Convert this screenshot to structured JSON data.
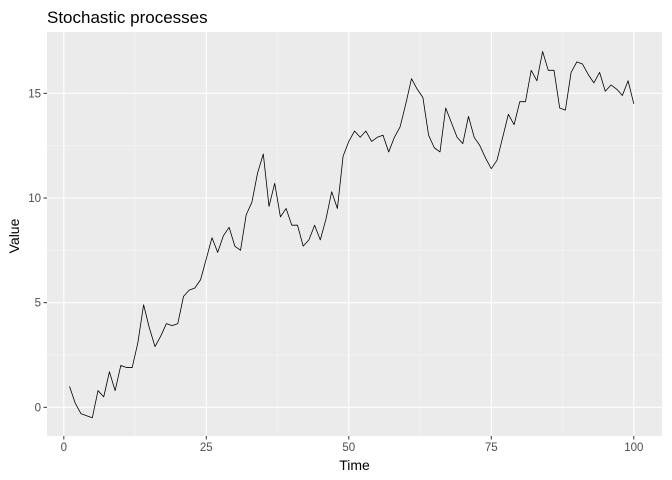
{
  "chart_data": {
    "type": "line",
    "title": "Stochastic processes",
    "xlabel": "Time",
    "ylabel": "Value",
    "xlim": [
      -2.95,
      104.95
    ],
    "ylim": [
      -1.37,
      17.93
    ],
    "x_ticks": [
      0,
      25,
      50,
      75,
      100
    ],
    "x_tick_labels": [
      "0",
      "25",
      "50",
      "75",
      "100"
    ],
    "y_ticks": [
      0,
      5,
      10,
      15
    ],
    "y_tick_labels": [
      "0",
      "5",
      "10",
      "15"
    ],
    "grid": true,
    "legend": "none",
    "colors": {
      "panel_background": "#EBEBEB",
      "major_grid": "#FFFFFF",
      "minor_grid": "#F5F5F5",
      "line": "#000000",
      "tick_text": "#4D4D4D",
      "tick_mark": "#333333"
    },
    "series": [
      {
        "x": [
          1,
          2,
          3,
          4,
          5,
          6,
          7,
          8,
          9,
          10,
          11,
          12,
          13,
          14,
          15,
          16,
          17,
          18,
          19,
          20,
          21,
          22,
          23,
          24,
          25,
          26,
          27,
          28,
          29,
          30,
          31,
          32,
          33,
          34,
          35,
          36,
          37,
          38,
          39,
          40,
          41,
          42,
          43,
          44,
          45,
          46,
          47,
          48,
          49,
          50,
          51,
          52,
          53,
          54,
          55,
          56,
          57,
          58,
          59,
          60,
          61,
          62,
          63,
          64,
          65,
          66,
          67,
          68,
          69,
          70,
          71,
          72,
          73,
          74,
          75,
          76,
          77,
          78,
          79,
          80,
          81,
          82,
          83,
          84,
          85,
          86,
          87,
          88,
          89,
          90,
          91,
          92,
          93,
          94,
          95,
          96,
          97,
          98,
          99,
          100
        ],
        "values": [
          1.0,
          0.2,
          -0.3,
          -0.4,
          -0.5,
          0.8,
          0.5,
          1.7,
          0.8,
          2.0,
          1.9,
          1.9,
          3.1,
          4.9,
          3.8,
          2.9,
          3.4,
          4.0,
          3.9,
          4.0,
          5.3,
          5.6,
          5.7,
          6.1,
          7.1,
          8.1,
          7.4,
          8.2,
          8.6,
          7.7,
          7.5,
          9.2,
          9.8,
          11.2,
          12.1,
          9.6,
          10.7,
          9.1,
          9.5,
          8.7,
          8.7,
          7.7,
          8.0,
          8.7,
          8.0,
          9.0,
          10.3,
          9.5,
          12.0,
          12.7,
          13.2,
          12.9,
          13.2,
          12.7,
          12.9,
          13.0,
          12.2,
          12.9,
          13.4,
          14.5,
          15.7,
          15.2,
          14.8,
          13.0,
          12.4,
          12.2,
          14.3,
          13.6,
          12.9,
          12.6,
          13.9,
          12.9,
          12.5,
          11.9,
          11.4,
          11.8,
          12.9,
          14.0,
          13.5,
          14.6,
          14.6,
          16.1,
          15.6,
          17.0,
          16.1,
          16.1,
          14.3,
          14.2,
          16.0,
          16.5,
          16.4,
          15.9,
          15.5,
          16.0,
          15.1,
          15.4,
          15.2,
          14.9,
          15.6,
          14.5
        ]
      }
    ]
  }
}
